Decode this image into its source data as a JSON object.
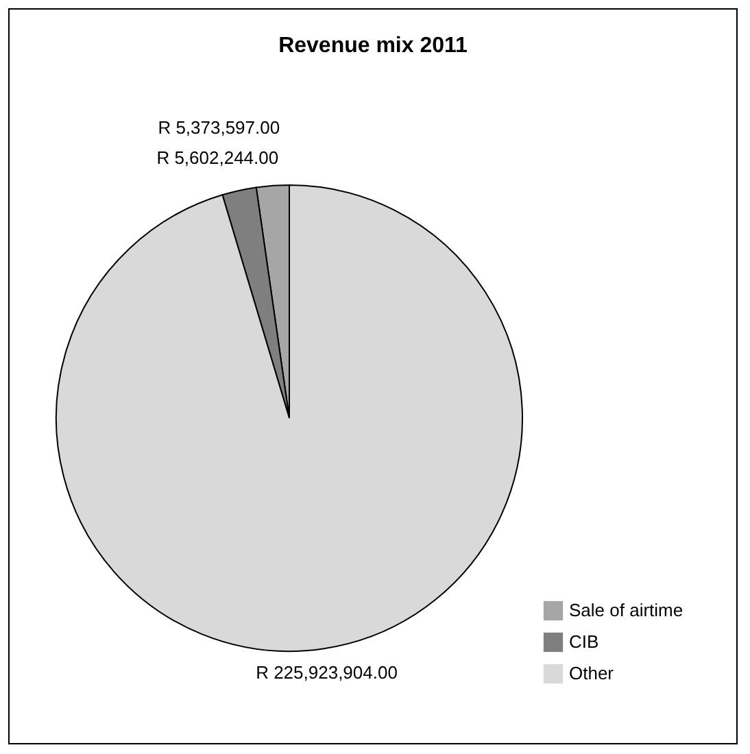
{
  "chart_data": {
    "type": "pie",
    "title": "Revenue mix 2011",
    "categories": [
      "Sale of airtime",
      "CIB",
      "Other"
    ],
    "values": [
      5373597,
      5602244,
      225923904
    ],
    "colors": [
      "#a6a6a6",
      "#7f7f7f",
      "#d9d9d9"
    ],
    "value_labels": [
      "R 5,373,597.00",
      "R 5,602,244.00",
      "R 225,923,904.00"
    ],
    "legend": "bottom right"
  }
}
